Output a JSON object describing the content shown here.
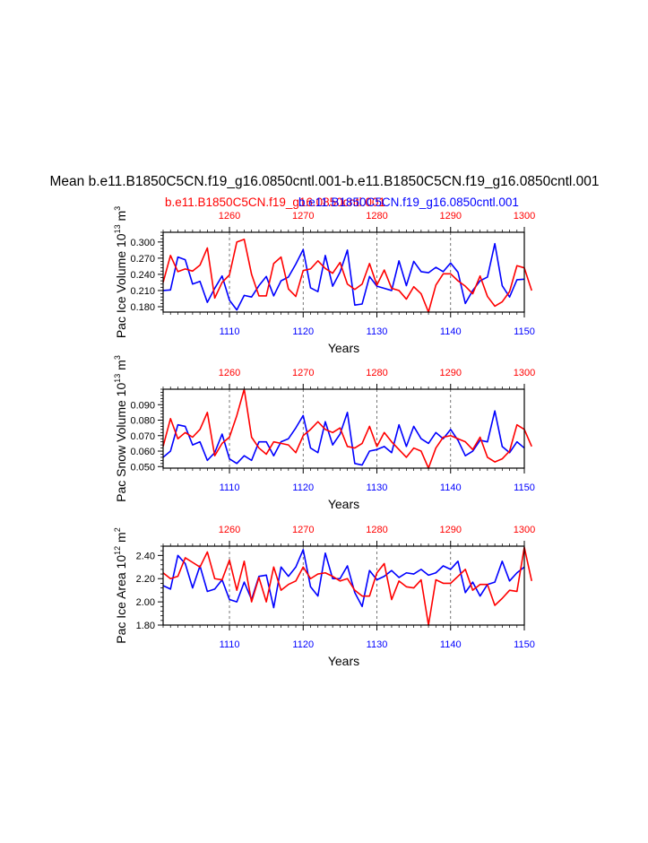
{
  "title": "Mean b.e11.B1850C5CN.f19_g16.0850cntl.001-b.e11.B1850C5CN.f19_g16.0850cntl.001",
  "legend": {
    "red": "b.e11.B1850C5CN.f19_g16.0850cntl.001",
    "blue": "b.e11.B1850C5CN.f19_g16.0850cntl.001"
  },
  "colors": {
    "red": "#ff0000",
    "blue": "#0000ff",
    "axis": "#000000",
    "grid": "#555555"
  },
  "chart_data": [
    {
      "type": "line",
      "ylabel_main": "Pac Ice Volume 10",
      "ylabel_exp": "13",
      "ylabel_unit": " m",
      "ylabel_unit_exp": "3",
      "xlabel": "Years",
      "xlim_bottom": [
        1101,
        1150
      ],
      "xlim_top": [
        1251,
        1300
      ],
      "ylim": [
        0.17,
        0.318
      ],
      "yticks": [
        0.18,
        0.21,
        0.24,
        0.27,
        0.3
      ],
      "ytick_labels": [
        "0.180",
        "0.210",
        "0.240",
        "0.270",
        "0.300"
      ],
      "bottom_ticks": [
        1110,
        1120,
        1130,
        1140,
        1150
      ],
      "bottom_tick_labels": [
        "1110",
        "1120",
        "1130",
        "1140",
        "1150"
      ],
      "top_ticks": [
        1260,
        1270,
        1280,
        1290,
        1300
      ],
      "top_tick_labels": [
        "1260",
        "1270",
        "1280",
        "1290",
        "1300"
      ],
      "series": [
        {
          "name": "blue",
          "x_start": 1101,
          "values": [
            0.21,
            0.211,
            0.272,
            0.267,
            0.222,
            0.227,
            0.188,
            0.214,
            0.237,
            0.192,
            0.174,
            0.201,
            0.198,
            0.219,
            0.236,
            0.2,
            0.228,
            0.235,
            0.259,
            0.286,
            0.215,
            0.208,
            0.275,
            0.218,
            0.244,
            0.285,
            0.183,
            0.185,
            0.236,
            0.218,
            0.214,
            0.21,
            0.265,
            0.219,
            0.264,
            0.245,
            0.243,
            0.253,
            0.245,
            0.261,
            0.244,
            0.186,
            0.21,
            0.228,
            0.235,
            0.297,
            0.219,
            0.198,
            0.23,
            0.231
          ]
        },
        {
          "name": "red",
          "x_start": 1251,
          "values": [
            0.225,
            0.275,
            0.245,
            0.25,
            0.246,
            0.257,
            0.289,
            0.196,
            0.225,
            0.239,
            0.3,
            0.305,
            0.24,
            0.2,
            0.2,
            0.26,
            0.272,
            0.213,
            0.199,
            0.247,
            0.25,
            0.265,
            0.251,
            0.242,
            0.262,
            0.222,
            0.212,
            0.222,
            0.26,
            0.22,
            0.248,
            0.214,
            0.21,
            0.194,
            0.217,
            0.204,
            0.17,
            0.22,
            0.241,
            0.241,
            0.228,
            0.218,
            0.204,
            0.237,
            0.199,
            0.181,
            0.189,
            0.208,
            0.256,
            0.252,
            0.21
          ]
        }
      ]
    },
    {
      "type": "line",
      "ylabel_main": "Pac Snow Volume 10",
      "ylabel_exp": "13",
      "ylabel_unit": " m",
      "ylabel_unit_exp": "3",
      "xlabel": "Years",
      "xlim_bottom": [
        1101,
        1150
      ],
      "xlim_top": [
        1251,
        1300
      ],
      "ylim": [
        0.049,
        0.1
      ],
      "yticks": [
        0.05,
        0.06,
        0.07,
        0.08,
        0.09
      ],
      "ytick_labels": [
        "0.050",
        "0.060",
        "0.070",
        "0.080",
        "0.090"
      ],
      "bottom_ticks": [
        1110,
        1120,
        1130,
        1140,
        1150
      ],
      "bottom_tick_labels": [
        "1110",
        "1120",
        "1130",
        "1140",
        "1150"
      ],
      "top_ticks": [
        1260,
        1270,
        1280,
        1290,
        1300
      ],
      "top_tick_labels": [
        "1260",
        "1270",
        "1280",
        "1290",
        "1300"
      ],
      "series": [
        {
          "name": "blue",
          "x_start": 1101,
          "values": [
            0.056,
            0.06,
            0.077,
            0.076,
            0.064,
            0.066,
            0.054,
            0.059,
            0.071,
            0.055,
            0.052,
            0.057,
            0.054,
            0.066,
            0.066,
            0.057,
            0.066,
            0.068,
            0.075,
            0.083,
            0.062,
            0.059,
            0.079,
            0.064,
            0.071,
            0.085,
            0.052,
            0.051,
            0.06,
            0.061,
            0.063,
            0.059,
            0.077,
            0.063,
            0.076,
            0.068,
            0.065,
            0.072,
            0.068,
            0.074,
            0.067,
            0.057,
            0.06,
            0.067,
            0.066,
            0.086,
            0.063,
            0.059,
            0.066,
            0.062
          ]
        },
        {
          "name": "red",
          "x_start": 1251,
          "values": [
            0.063,
            0.081,
            0.068,
            0.072,
            0.069,
            0.074,
            0.085,
            0.057,
            0.065,
            0.069,
            0.083,
            0.1,
            0.069,
            0.062,
            0.058,
            0.066,
            0.065,
            0.064,
            0.059,
            0.07,
            0.074,
            0.079,
            0.074,
            0.072,
            0.075,
            0.063,
            0.062,
            0.065,
            0.076,
            0.063,
            0.072,
            0.066,
            0.061,
            0.056,
            0.062,
            0.06,
            0.049,
            0.062,
            0.069,
            0.07,
            0.068,
            0.066,
            0.061,
            0.069,
            0.056,
            0.053,
            0.055,
            0.06,
            0.077,
            0.074,
            0.063
          ]
        }
      ]
    },
    {
      "type": "line",
      "ylabel_main": "Pac Ice Area 10",
      "ylabel_exp": "12",
      "ylabel_unit": " m",
      "ylabel_unit_exp": "2",
      "xlabel": "Years",
      "xlim_bottom": [
        1101,
        1150
      ],
      "xlim_top": [
        1251,
        1300
      ],
      "ylim": [
        1.8,
        2.48
      ],
      "yticks": [
        1.8,
        2.0,
        2.2,
        2.4
      ],
      "ytick_labels": [
        "1.80",
        "2.00",
        "2.20",
        "2.40"
      ],
      "bottom_ticks": [
        1110,
        1120,
        1130,
        1140,
        1150
      ],
      "bottom_tick_labels": [
        "1110",
        "1120",
        "1130",
        "1140",
        "1150"
      ],
      "top_ticks": [
        1260,
        1270,
        1280,
        1290,
        1300
      ],
      "top_tick_labels": [
        "1260",
        "1270",
        "1280",
        "1290",
        "1300"
      ],
      "series": [
        {
          "name": "blue",
          "x_start": 1101,
          "values": [
            2.14,
            2.11,
            2.4,
            2.33,
            2.12,
            2.31,
            2.09,
            2.11,
            2.19,
            2.02,
            2.0,
            2.17,
            2.02,
            2.22,
            2.23,
            1.95,
            2.3,
            2.22,
            2.3,
            2.45,
            2.13,
            2.05,
            2.42,
            2.2,
            2.2,
            2.31,
            2.08,
            1.96,
            2.27,
            2.19,
            2.22,
            2.27,
            2.21,
            2.25,
            2.24,
            2.28,
            2.23,
            2.25,
            2.31,
            2.28,
            2.35,
            2.08,
            2.17,
            2.05,
            2.15,
            2.17,
            2.35,
            2.18,
            2.25,
            2.3
          ]
        },
        {
          "name": "red",
          "x_start": 1251,
          "values": [
            2.25,
            2.2,
            2.22,
            2.38,
            2.34,
            2.3,
            2.43,
            2.2,
            2.19,
            2.36,
            2.1,
            2.35,
            2.0,
            2.21,
            2.0,
            2.3,
            2.1,
            2.15,
            2.18,
            2.3,
            2.2,
            2.24,
            2.25,
            2.22,
            2.18,
            2.2,
            2.1,
            2.05,
            2.05,
            2.25,
            2.33,
            2.02,
            2.18,
            2.13,
            2.12,
            2.19,
            1.8,
            2.19,
            2.16,
            2.16,
            2.22,
            2.28,
            2.1,
            2.15,
            2.15,
            1.97,
            2.03,
            2.1,
            2.09,
            2.47,
            2.18
          ]
        }
      ]
    }
  ]
}
